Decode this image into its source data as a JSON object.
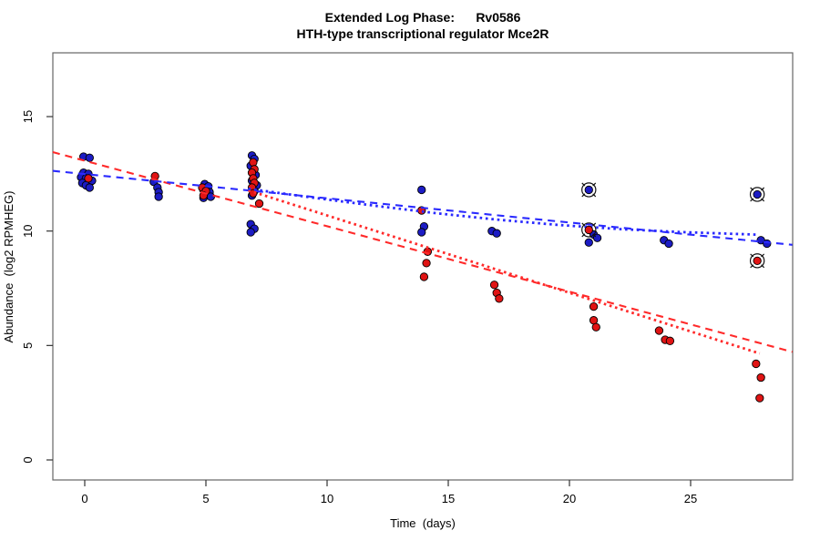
{
  "chart_data": {
    "type": "scatter",
    "title": "Extended Log Phase:      Rv0586",
    "subtitle": "HTH-type transcriptional regulator Mce2R",
    "xlabel": "Time  (days)",
    "ylabel": "Abundance  (log2 RPMHEG)",
    "xlim": [
      -1.32,
      29.2
    ],
    "ylim": [
      -0.88,
      17.8
    ],
    "xticks": [
      0,
      5,
      10,
      15,
      20,
      25
    ],
    "yticks": [
      0,
      5,
      10,
      15
    ],
    "grid": false,
    "legend": "none",
    "colors": {
      "blue_point": "#1c1cc4",
      "red_point": "#e01414",
      "blue_line": "#2a2aff",
      "red_line": "#ff2a2a",
      "point_outline": "#000000",
      "box": "#666666",
      "tick": "#333333"
    },
    "series": [
      {
        "name": "blue",
        "marker": "filled-circle",
        "color": "#1c1cc4",
        "points": [
          [
            -0.05,
            13.25
          ],
          [
            0.2,
            13.2
          ],
          [
            -0.05,
            12.55
          ],
          [
            0.15,
            12.5
          ],
          [
            -0.15,
            12.35
          ],
          [
            0.05,
            12.3
          ],
          [
            0.3,
            12.2
          ],
          [
            -0.1,
            12.1
          ],
          [
            0.05,
            12.0
          ],
          [
            0.2,
            11.9
          ],
          [
            2.85,
            12.15
          ],
          [
            3.0,
            11.9
          ],
          [
            3.05,
            11.7
          ],
          [
            3.05,
            11.5
          ],
          [
            4.95,
            12.05
          ],
          [
            5.1,
            11.95
          ],
          [
            4.9,
            11.8
          ],
          [
            5.15,
            11.7
          ],
          [
            5.0,
            11.6
          ],
          [
            5.2,
            11.5
          ],
          [
            4.9,
            11.45
          ],
          [
            6.9,
            13.3
          ],
          [
            7.0,
            13.15
          ],
          [
            6.85,
            12.85
          ],
          [
            7.05,
            12.45
          ],
          [
            6.9,
            12.2
          ],
          [
            7.1,
            12.0
          ],
          [
            7.0,
            11.75
          ],
          [
            6.9,
            11.55
          ],
          [
            6.85,
            10.3
          ],
          [
            7.0,
            10.1
          ],
          [
            6.85,
            9.95
          ],
          [
            13.9,
            11.8
          ],
          [
            14.0,
            10.2
          ],
          [
            13.9,
            9.95
          ],
          [
            16.8,
            10.0
          ],
          [
            17.0,
            9.9
          ],
          [
            21.0,
            9.85
          ],
          [
            21.15,
            9.7
          ],
          [
            20.8,
            9.5
          ],
          [
            23.9,
            9.6
          ],
          [
            24.1,
            9.45
          ],
          [
            27.9,
            9.6
          ],
          [
            28.15,
            9.45
          ]
        ]
      },
      {
        "name": "red",
        "marker": "filled-circle",
        "color": "#e01414",
        "points": [
          [
            0.15,
            12.3
          ],
          [
            2.9,
            12.4
          ],
          [
            4.85,
            11.9
          ],
          [
            5.0,
            11.75
          ],
          [
            4.9,
            11.55
          ],
          [
            6.95,
            13.0
          ],
          [
            7.0,
            12.7
          ],
          [
            6.9,
            12.55
          ],
          [
            6.95,
            12.3
          ],
          [
            7.0,
            12.1
          ],
          [
            6.9,
            11.9
          ],
          [
            6.95,
            11.65
          ],
          [
            7.2,
            11.2
          ],
          [
            13.9,
            10.9
          ],
          [
            14.15,
            9.1
          ],
          [
            14.1,
            8.6
          ],
          [
            14.0,
            8.0
          ],
          [
            16.9,
            7.65
          ],
          [
            17.0,
            7.3
          ],
          [
            17.1,
            7.05
          ],
          [
            21.0,
            6.7
          ],
          [
            21.0,
            6.1
          ],
          [
            21.1,
            5.8
          ],
          [
            23.7,
            5.65
          ],
          [
            23.95,
            5.25
          ],
          [
            24.15,
            5.2
          ],
          [
            27.7,
            4.2
          ],
          [
            27.9,
            3.6
          ],
          [
            27.85,
            2.7
          ]
        ]
      }
    ],
    "flagged_points": [
      {
        "series": "blue",
        "x": 20.8,
        "y": 11.8
      },
      {
        "series": "red",
        "x": 20.8,
        "y": 10.05
      },
      {
        "series": "blue",
        "x": 27.75,
        "y": 11.6
      },
      {
        "series": "red",
        "x": 27.75,
        "y": 8.7
      }
    ],
    "trend_lines": [
      {
        "name": "red-dashed",
        "color": "#ff2a2a",
        "style": "dashed",
        "points": [
          [
            -1.32,
            13.45
          ],
          [
            29.2,
            4.72
          ]
        ]
      },
      {
        "name": "blue-dashed",
        "color": "#2a2aff",
        "style": "dashed",
        "points": [
          [
            -1.32,
            12.63
          ],
          [
            29.2,
            9.4
          ]
        ]
      },
      {
        "name": "red-dotted",
        "color": "#ff2a2a",
        "style": "dotted",
        "points": [
          [
            6.75,
            11.78
          ],
          [
            27.85,
            4.65
          ]
        ]
      },
      {
        "name": "blue-dotted",
        "color": "#2a2aff",
        "style": "dotted",
        "points": [
          [
            6.75,
            11.85
          ],
          [
            9.5,
            11.45
          ],
          [
            12,
            11.1
          ],
          [
            14.5,
            10.78
          ],
          [
            17,
            10.5
          ],
          [
            19.5,
            10.27
          ],
          [
            22,
            10.09
          ],
          [
            24.5,
            9.96
          ],
          [
            27.8,
            9.84
          ]
        ]
      }
    ]
  }
}
